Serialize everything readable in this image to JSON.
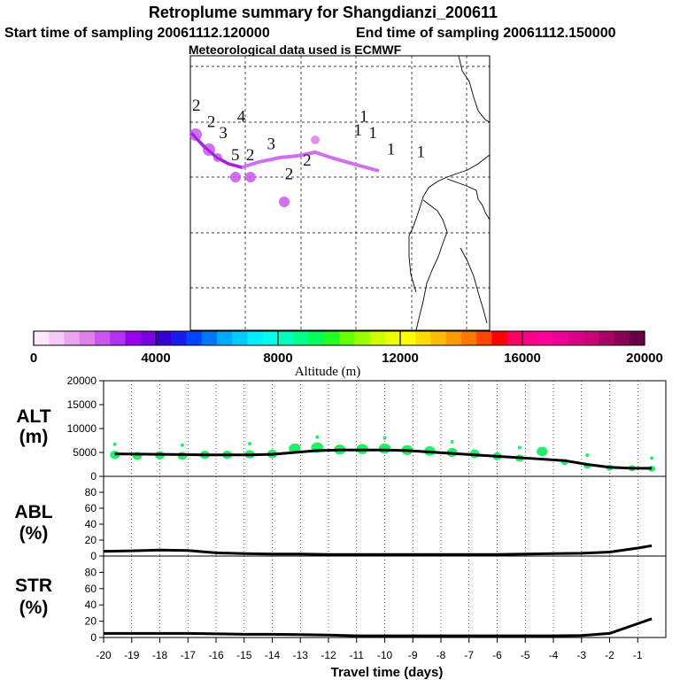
{
  "header": {
    "title": "Retroplume summary for Shangdianzi_200611",
    "start_label": "Start time of sampling 20061112.120000",
    "end_label": "End time of sampling 20061112.150000",
    "met_label": "Meteorological data used is ECMWF"
  },
  "colors": {
    "track": "#d070f0",
    "track_dark": "#a020e0",
    "dots": "#22ee66",
    "line": "#000000"
  },
  "map": {
    "labels": [
      {
        "text": "2",
        "lon": 0.02,
        "lat": 0.2
      },
      {
        "text": "4",
        "lon": 0.17,
        "lat": 0.24
      },
      {
        "text": "2",
        "lon": 0.07,
        "lat": 0.26
      },
      {
        "text": "3",
        "lon": 0.11,
        "lat": 0.3
      },
      {
        "text": "3",
        "lon": 0.27,
        "lat": 0.34
      },
      {
        "text": "5",
        "lon": 0.15,
        "lat": 0.38
      },
      {
        "text": "2",
        "lon": 0.2,
        "lat": 0.38
      },
      {
        "text": "2",
        "lon": 0.39,
        "lat": 0.4
      },
      {
        "text": "2",
        "lon": 0.33,
        "lat": 0.45
      },
      {
        "text": "1",
        "lon": 0.58,
        "lat": 0.24
      },
      {
        "text": "1",
        "lon": 0.56,
        "lat": 0.29
      },
      {
        "text": "1",
        "lon": 0.61,
        "lat": 0.3
      },
      {
        "text": "1",
        "lon": 0.67,
        "lat": 0.36
      },
      {
        "text": "1",
        "lon": 0.77,
        "lat": 0.37
      }
    ]
  },
  "colorbar": {
    "ticks": [
      "0",
      "4000",
      "8000",
      "12000",
      "16000",
      "20000"
    ],
    "label": "Altitude (m)",
    "colors": [
      "#ffe6ff",
      "#f5c8f5",
      "#eaa5ee",
      "#dd80ea",
      "#cc55ee",
      "#b333f0",
      "#9900ee",
      "#7a00e0",
      "#3300cc",
      "#1a1aee",
      "#0044ff",
      "#0077ff",
      "#00aaff",
      "#00ccff",
      "#00eeff",
      "#00ffe8",
      "#00ffbb",
      "#00ff88",
      "#00ff55",
      "#22ff22",
      "#66ff00",
      "#99ff00",
      "#ccff00",
      "#eeff00",
      "#ffff00",
      "#ffdd00",
      "#ffbb00",
      "#ff9900",
      "#ff7700",
      "#ff4400",
      "#ff0000",
      "#ff0066",
      "#ff0088",
      "#ff0099",
      "#ee0099",
      "#dd0088",
      "#cc0077",
      "#aa0066",
      "#880055",
      "#660044"
    ]
  },
  "chart_data": [
    {
      "type": "line",
      "panel": "ALT",
      "ylabel": "ALT (m)",
      "ylabel_parts": [
        "ALT",
        "(m)"
      ],
      "ylim": [
        0,
        20000
      ],
      "yticks": [
        "0",
        "5000",
        "10000",
        "15000",
        "20000"
      ],
      "x": [
        -19.6,
        -18.8,
        -18.0,
        -17.2,
        -16.4,
        -15.6,
        -14.8,
        -14.0,
        -13.2,
        -12.4,
        -11.6,
        -10.8,
        -10.0,
        -9.2,
        -8.4,
        -7.6,
        -6.8,
        -6.0,
        -5.2,
        -4.4,
        -3.6,
        -2.8,
        -2.0,
        -1.2,
        -0.5
      ],
      "median_line": [
        4700,
        4650,
        4600,
        4550,
        4500,
        4500,
        4500,
        4600,
        5000,
        5400,
        5500,
        5500,
        5500,
        5400,
        5100,
        4800,
        4500,
        4200,
        3900,
        3600,
        3300,
        2500,
        1900,
        1700,
        1700
      ],
      "dot_values": [
        4500,
        4300,
        4400,
        4300,
        4500,
        4500,
        4600,
        4700,
        5800,
        6000,
        5600,
        5700,
        5800,
        5500,
        5300,
        5000,
        4700,
        4200,
        3800,
        5200,
        3000,
        2200,
        1800,
        1700,
        1600
      ]
    },
    {
      "type": "line",
      "panel": "ABL",
      "ylabel": "ABL (%)",
      "ylabel_parts": [
        "ABL",
        "(%)"
      ],
      "ylim": [
        0,
        100
      ],
      "yticks": [
        "0",
        "20",
        "40",
        "60",
        "80"
      ],
      "x": [
        -20.0,
        -19.0,
        -18.0,
        -17.0,
        -16.0,
        -15.0,
        -14.0,
        -13.0,
        -12.0,
        -11.0,
        -10.0,
        -9.0,
        -8.0,
        -7.0,
        -6.0,
        -5.0,
        -4.0,
        -3.0,
        -2.0,
        -1.0,
        -0.5
      ],
      "values": [
        6,
        6.5,
        7.5,
        7,
        4,
        3,
        2.5,
        2.5,
        2,
        2,
        2,
        2,
        2,
        2,
        2,
        2.5,
        3,
        3.5,
        5,
        10,
        13
      ]
    },
    {
      "type": "line",
      "panel": "STR",
      "ylabel": "STR (%)",
      "ylabel_parts": [
        "STR",
        "(%)"
      ],
      "ylim": [
        0,
        100
      ],
      "yticks": [
        "0",
        "20",
        "40",
        "60",
        "80"
      ],
      "x": [
        -20.0,
        -19.0,
        -18.0,
        -17.0,
        -16.0,
        -15.0,
        -14.0,
        -13.0,
        -12.0,
        -11.0,
        -10.0,
        -9.0,
        -8.0,
        -7.0,
        -6.0,
        -5.0,
        -4.0,
        -3.0,
        -2.0,
        -1.0,
        -0.5
      ],
      "values": [
        5,
        5,
        5,
        5,
        4.5,
        4,
        4,
        3.5,
        3,
        2,
        2,
        2,
        2,
        2,
        2,
        2,
        2,
        2.5,
        5,
        17,
        23
      ]
    }
  ],
  "xaxis": {
    "label": "Travel time (days)",
    "xlim": [
      -20,
      0
    ],
    "ticks": [
      "-20",
      "-19",
      "-18",
      "-17",
      "-16",
      "-15",
      "-14",
      "-13",
      "-12",
      "-11",
      "-10",
      "-9",
      "-8",
      "-7",
      "-6",
      "-5",
      "-4",
      "-3",
      "-2",
      "-1"
    ]
  }
}
